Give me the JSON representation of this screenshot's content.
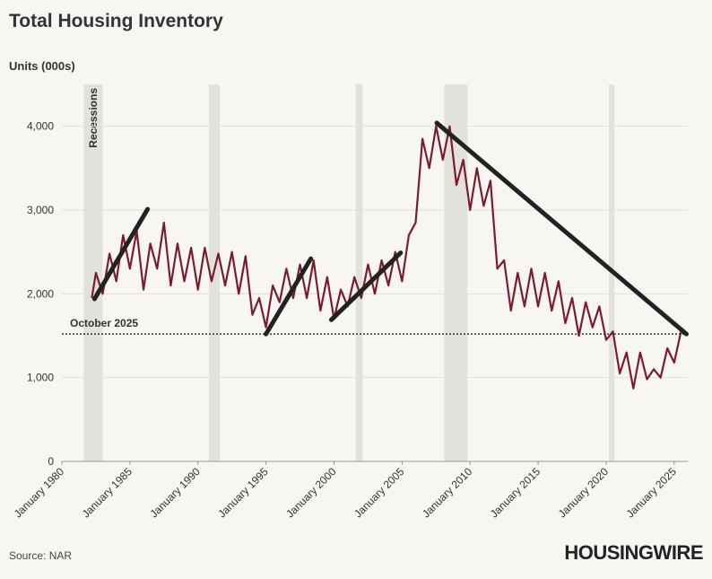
{
  "chart_data": {
    "type": "line",
    "title": "Total Housing Inventory",
    "y_label": "Units (000s)",
    "source": "Source: NAR",
    "brand": "HOUSINGWIRE",
    "xlim": [
      1980,
      2026
    ],
    "ylim": [
      0,
      4500
    ],
    "xticks": [
      {
        "value": 1980,
        "label": "January 1980"
      },
      {
        "value": 1985,
        "label": "January 1985"
      },
      {
        "value": 1990,
        "label": "January 1990"
      },
      {
        "value": 1995,
        "label": "January 1995"
      },
      {
        "value": 2000,
        "label": "January 2000"
      },
      {
        "value": 2005,
        "label": "January 2005"
      },
      {
        "value": 2010,
        "label": "January 2010"
      },
      {
        "value": 2015,
        "label": "January 2015"
      },
      {
        "value": 2020,
        "label": "January 2020"
      },
      {
        "value": 2025,
        "label": "January 2025"
      }
    ],
    "yticks": [
      0,
      {
        "value": 1000,
        "label": "1,000"
      },
      {
        "value": 2000,
        "label": "2,000"
      },
      {
        "value": 3000,
        "label": "3,000"
      },
      {
        "value": 4000,
        "label": "4,000"
      }
    ],
    "grid": true,
    "recessions": {
      "label": "Recessions",
      "color": "#e3e1dc",
      "ranges": [
        [
          1981.6,
          1983.0
        ],
        [
          1990.8,
          1991.6
        ],
        [
          2001.6,
          2002.1
        ],
        [
          2008.1,
          2009.8
        ],
        [
          2020.2,
          2020.6
        ]
      ]
    },
    "reference": {
      "label": "October 2025",
      "value": 1520
    },
    "trend_lines": [
      {
        "color": "#222222",
        "x": [
          1982.4,
          1986.3
        ],
        "values": [
          1940,
          3010
        ]
      },
      {
        "color": "#222222",
        "x": [
          1995.0,
          1998.3
        ],
        "values": [
          1520,
          2420
        ]
      },
      {
        "color": "#222222",
        "x": [
          1999.8,
          2004.9
        ],
        "values": [
          1690,
          2490
        ]
      },
      {
        "color": "#222222",
        "x": [
          2007.55,
          2025.9
        ],
        "values": [
          4040,
          1520
        ]
      }
    ],
    "series": [
      {
        "color": "#7b1c2a",
        "x": [
          1982.2,
          1982.5,
          1983.0,
          1983.5,
          1984.0,
          1984.5,
          1985.0,
          1985.5,
          1986.0,
          1986.5,
          1987.0,
          1987.5,
          1988.0,
          1988.5,
          1989.0,
          1989.5,
          1990.0,
          1990.5,
          1991.0,
          1991.5,
          1992.0,
          1992.5,
          1993.0,
          1993.5,
          1994.0,
          1994.5,
          1995.0,
          1995.5,
          1996.0,
          1996.5,
          1997.0,
          1997.5,
          1998.0,
          1998.5,
          1999.0,
          1999.5,
          2000.0,
          2000.5,
          2001.0,
          2001.5,
          2002.0,
          2002.5,
          2003.0,
          2003.5,
          2004.0,
          2004.5,
          2005.0,
          2005.5,
          2006.0,
          2006.5,
          2007.0,
          2007.5,
          2008.0,
          2008.5,
          2009.0,
          2009.5,
          2010.0,
          2010.5,
          2011.0,
          2011.5,
          2012.0,
          2012.5,
          2013.0,
          2013.5,
          2014.0,
          2014.5,
          2015.0,
          2015.5,
          2016.0,
          2016.5,
          2017.0,
          2017.5,
          2018.0,
          2018.5,
          2019.0,
          2019.5,
          2020.0,
          2020.5,
          2021.0,
          2021.5,
          2022.0,
          2022.5,
          2023.0,
          2023.5,
          2024.0,
          2024.5,
          2025.0,
          2025.5,
          2025.75
        ],
        "values": [
          1950,
          2250,
          2000,
          2480,
          2150,
          2700,
          2300,
          2750,
          2050,
          2600,
          2300,
          2850,
          2100,
          2600,
          2150,
          2550,
          2050,
          2550,
          2150,
          2480,
          2100,
          2500,
          2000,
          2450,
          1750,
          1950,
          1600,
          2100,
          1900,
          2300,
          1950,
          2350,
          1950,
          2400,
          1800,
          2200,
          1700,
          2050,
          1850,
          2200,
          1950,
          2350,
          2000,
          2400,
          2100,
          2500,
          2150,
          2700,
          2850,
          3850,
          3500,
          4000,
          3600,
          4000,
          3300,
          3600,
          3000,
          3500,
          3050,
          3350,
          2300,
          2400,
          1800,
          2250,
          1850,
          2300,
          1850,
          2250,
          1800,
          2150,
          1650,
          1950,
          1500,
          1900,
          1600,
          1850,
          1450,
          1550,
          1050,
          1300,
          870,
          1300,
          980,
          1100,
          1000,
          1350,
          1180,
          1550,
          1520
        ]
      }
    ]
  }
}
